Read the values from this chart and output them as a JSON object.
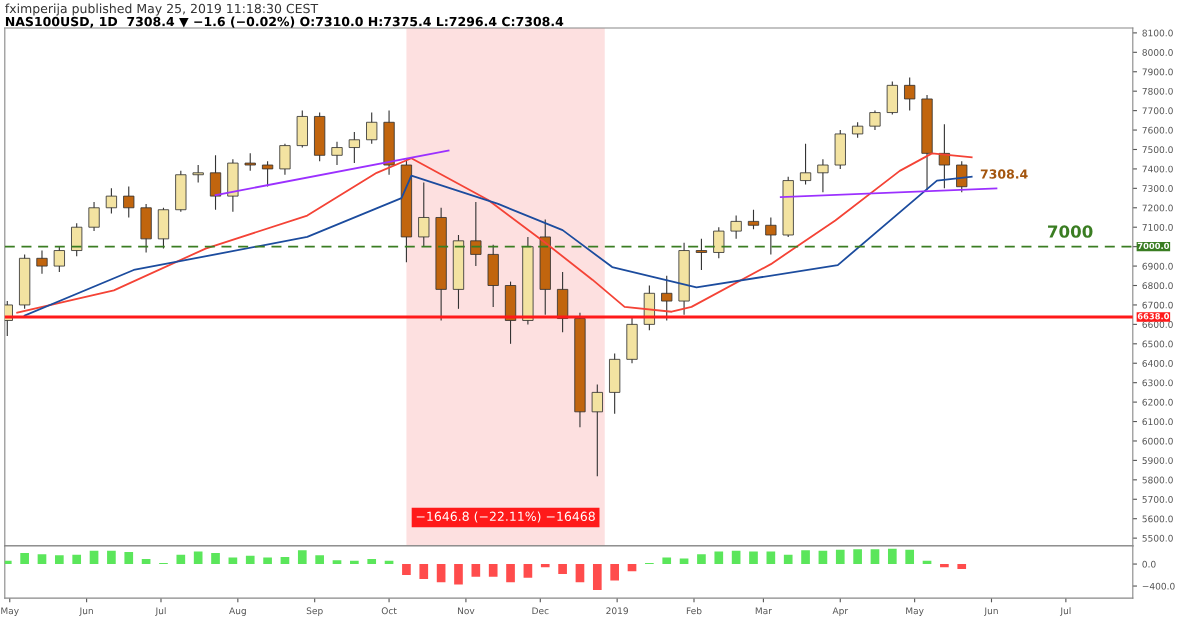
{
  "chart_data": [
    {
      "type": "candlestick",
      "subtitle": "fximperija published May 25, 2019 11:18:30 CEST",
      "title": "NAS100USD, 1D  7308.4 ▼ −1.6 (−0.02%) O:7310.0 H:7375.4 L:7296.4 C:7308.4",
      "x": [
        "2018-04-30",
        "2018-05-07",
        "2018-05-14",
        "2018-05-21",
        "2018-05-28",
        "2018-06-04",
        "2018-06-11",
        "2018-06-18",
        "2018-06-25",
        "2018-07-02",
        "2018-07-09",
        "2018-07-16",
        "2018-07-23",
        "2018-07-30",
        "2018-08-06",
        "2018-08-13",
        "2018-08-20",
        "2018-08-27",
        "2018-09-03",
        "2018-09-10",
        "2018-09-17",
        "2018-09-24",
        "2018-10-01",
        "2018-10-08",
        "2018-10-15",
        "2018-10-22",
        "2018-10-29",
        "2018-11-05",
        "2018-11-12",
        "2018-11-19",
        "2018-11-26",
        "2018-12-03",
        "2018-12-10",
        "2018-12-17",
        "2018-12-24",
        "2018-12-31",
        "2019-01-07",
        "2019-01-14",
        "2019-01-21",
        "2019-01-28",
        "2019-02-04",
        "2019-02-11",
        "2019-02-18",
        "2019-02-25",
        "2019-03-04",
        "2019-03-11",
        "2019-03-18",
        "2019-03-25",
        "2019-04-01",
        "2019-04-08",
        "2019-04-15",
        "2019-04-22",
        "2019-04-29",
        "2019-05-06",
        "2019-05-13",
        "2019-05-20"
      ],
      "ohlc": [
        [
          6620,
          6720,
          6540,
          6700
        ],
        [
          6700,
          6960,
          6680,
          6940
        ],
        [
          6940,
          6980,
          6860,
          6900
        ],
        [
          6900,
          7000,
          6870,
          6980
        ],
        [
          6980,
          7120,
          6950,
          7100
        ],
        [
          7100,
          7230,
          7080,
          7200
        ],
        [
          7200,
          7300,
          7170,
          7260
        ],
        [
          7260,
          7310,
          7150,
          7200
        ],
        [
          7200,
          7220,
          6970,
          7040
        ],
        [
          7040,
          7200,
          6990,
          7190
        ],
        [
          7190,
          7390,
          7180,
          7370
        ],
        [
          7370,
          7420,
          7330,
          7380
        ],
        [
          7380,
          7470,
          7190,
          7260
        ],
        [
          7260,
          7450,
          7180,
          7430
        ],
        [
          7430,
          7480,
          7390,
          7420
        ],
        [
          7420,
          7440,
          7310,
          7400
        ],
        [
          7400,
          7530,
          7370,
          7520
        ],
        [
          7520,
          7700,
          7510,
          7670
        ],
        [
          7670,
          7690,
          7440,
          7470
        ],
        [
          7470,
          7540,
          7420,
          7510
        ],
        [
          7510,
          7590,
          7430,
          7550
        ],
        [
          7550,
          7690,
          7530,
          7640
        ],
        [
          7640,
          7700,
          7370,
          7420
        ],
        [
          7420,
          7450,
          6920,
          7050
        ],
        [
          7050,
          7330,
          7000,
          7150
        ],
        [
          7150,
          7200,
          6620,
          6780
        ],
        [
          6780,
          7060,
          6680,
          7030
        ],
        [
          7030,
          7230,
          6900,
          6960
        ],
        [
          6960,
          7010,
          6690,
          6800
        ],
        [
          6800,
          6820,
          6500,
          6620
        ],
        [
          6620,
          7050,
          6600,
          7000
        ],
        [
          7050,
          7140,
          6650,
          6780
        ],
        [
          6780,
          6870,
          6560,
          6630
        ],
        [
          6630,
          6660,
          6070,
          6150
        ],
        [
          6150,
          6290,
          5818,
          6250
        ],
        [
          6250,
          6450,
          6140,
          6420
        ],
        [
          6420,
          6640,
          6400,
          6600
        ],
        [
          6600,
          6800,
          6570,
          6760
        ],
        [
          6760,
          6850,
          6620,
          6720
        ],
        [
          6720,
          7020,
          6650,
          6980
        ],
        [
          6980,
          7040,
          6880,
          6970
        ],
        [
          6970,
          7100,
          6940,
          7080
        ],
        [
          7080,
          7160,
          7040,
          7130
        ],
        [
          7130,
          7190,
          7090,
          7110
        ],
        [
          7110,
          7150,
          6960,
          7060
        ],
        [
          7060,
          7360,
          7050,
          7340
        ],
        [
          7340,
          7530,
          7320,
          7380
        ],
        [
          7380,
          7450,
          7280,
          7420
        ],
        [
          7420,
          7600,
          7400,
          7580
        ],
        [
          7580,
          7640,
          7560,
          7620
        ],
        [
          7620,
          7700,
          7600,
          7690
        ],
        [
          7690,
          7850,
          7680,
          7830
        ],
        [
          7830,
          7870,
          7700,
          7760
        ],
        [
          7760,
          7780,
          7290,
          7480
        ],
        [
          7480,
          7630,
          7300,
          7420
        ],
        [
          7420,
          7440,
          7280,
          7308.4
        ]
      ],
      "colors": [
        "#f3e3a1",
        "#f3e3a1",
        "#c1650e",
        "#f3e3a1",
        "#f3e3a1",
        "#f3e3a1",
        "#f3e3a1",
        "#c1650e",
        "#c1650e",
        "#f3e3a1",
        "#f3e3a1",
        "#f3e3a1",
        "#c1650e",
        "#f3e3a1",
        "#c1650e",
        "#c1650e",
        "#f3e3a1",
        "#f3e3a1",
        "#c1650e",
        "#f3e3a1",
        "#f3e3a1",
        "#f3e3a1",
        "#c1650e",
        "#c1650e",
        "#f3e3a1",
        "#c1650e",
        "#f3e3a1",
        "#c1650e",
        "#c1650e",
        "#c1650e",
        "#f3e3a1",
        "#c1650e",
        "#c1650e",
        "#c1650e",
        "#f3e3a1",
        "#f3e3a1",
        "#f3e3a1",
        "#f3e3a1",
        "#c1650e",
        "#f3e3a1",
        "#c1650e",
        "#f3e3a1",
        "#f3e3a1",
        "#c1650e",
        "#c1650e",
        "#f3e3a1",
        "#f3e3a1",
        "#f3e3a1",
        "#f3e3a1",
        "#f3e3a1",
        "#f3e3a1",
        "#f3e3a1",
        "#c1650e",
        "#c1650e",
        "#c1650e",
        "#c1650e"
      ],
      "series": [
        {
          "type": "line",
          "color": "#f44336",
          "x": [
            "2018-05-04",
            "2018-06-12",
            "2018-07-19",
            "2018-08-29",
            "2018-09-26",
            "2018-10-10",
            "2018-11-10",
            "2018-12-03",
            "2018-12-22",
            "2019-01-04",
            "2019-01-23",
            "2019-01-31",
            "2019-03-04",
            "2019-03-30",
            "2019-04-25",
            "2019-05-08",
            "2019-05-24"
          ],
          "values": [
            6660,
            6775,
            6990,
            7160,
            7380,
            7455,
            7240,
            7020,
            6830,
            6690,
            6665,
            6690,
            6910,
            7135,
            7390,
            7480,
            7460
          ]
        },
        {
          "type": "line",
          "color": "#1c4c9e",
          "x": [
            "2018-05-07",
            "2018-06-20",
            "2018-08-29",
            "2018-10-06",
            "2018-10-10",
            "2018-11-14",
            "2018-12-10",
            "2018-12-30",
            "2019-02-02",
            "2019-03-31",
            "2019-05-10",
            "2019-05-24"
          ],
          "values": [
            6645,
            6880,
            7050,
            7250,
            7365,
            7220,
            7085,
            6895,
            6790,
            6905,
            7340,
            7360
          ]
        },
        {
          "type": "line",
          "color": "#9b30ff",
          "x": [
            "2018-07-23",
            "2018-10-25"
          ],
          "values": [
            7265,
            7495
          ]
        },
        {
          "type": "line",
          "color": "#9b30ff",
          "x": [
            "2019-03-08",
            "2019-06-03"
          ],
          "values": [
            7255,
            7300
          ]
        }
      ],
      "ref_lines": [
        {
          "axis": "y",
          "value": 7000,
          "label": "7000.0",
          "color": "#3a7d22",
          "line_style": "dashed"
        },
        {
          "axis": "y",
          "value": 6638,
          "label": "6638.0",
          "color": "#ff1a1a",
          "line_style": "solid"
        }
      ],
      "bands": [
        {
          "axis": "x",
          "from": "2018-10-08",
          "to": "2018-12-27",
          "label": "−1646.8 (−22.11%) −16468",
          "color": "#fde0e0"
        }
      ],
      "annotations": [
        {
          "text": "7000",
          "x": "2019-06-20",
          "y": 7000
        },
        {
          "text": "7308.4",
          "x": "2019-05-24",
          "y": 7308.4
        }
      ],
      "xlim": [
        "2018-04-29",
        "2019-07-28"
      ],
      "ylim": [
        5460,
        8125
      ],
      "yticks": [
        {
          "value": 5500,
          "label": "5500.0"
        },
        {
          "value": 5600,
          "label": "5600.0"
        },
        {
          "value": 5700,
          "label": "5700.0"
        },
        {
          "value": 5800,
          "label": "5800.0"
        },
        {
          "value": 5900,
          "label": "5900.0"
        },
        {
          "value": 6000,
          "label": "6000.0"
        },
        {
          "value": 6100,
          "label": "6100.0"
        },
        {
          "value": 6200,
          "label": "6200.0"
        },
        {
          "value": 6300,
          "label": "6300.0"
        },
        {
          "value": 6400,
          "label": "6400.0"
        },
        {
          "value": 6500,
          "label": "6500.0"
        },
        {
          "value": 6600,
          "label": "6600.0"
        },
        {
          "value": 6700,
          "label": "6700.0"
        },
        {
          "value": 6800,
          "label": "6800.0"
        },
        {
          "value": 6900,
          "label": "6900.0"
        },
        {
          "value": 7000,
          "label": null
        },
        {
          "value": 7100,
          "label": "7100.0"
        },
        {
          "value": 7200,
          "label": "7200.0"
        },
        {
          "value": 7300,
          "label": "7300.0"
        },
        {
          "value": 7400,
          "label": "7400.0"
        },
        {
          "value": 7500,
          "label": "7500.0"
        },
        {
          "value": 7600,
          "label": "7600.0"
        },
        {
          "value": 7700,
          "label": "7700.0"
        },
        {
          "value": 7800,
          "label": "7800.0"
        },
        {
          "value": 7900,
          "label": "7900.0"
        },
        {
          "value": 8000,
          "label": "8000.0"
        },
        {
          "value": 8100,
          "label": "8100.0"
        }
      ],
      "tick_labels": "y"
    },
    {
      "type": "bar",
      "x": [
        "2018-04-30",
        "2018-05-07",
        "2018-05-14",
        "2018-05-21",
        "2018-05-28",
        "2018-06-04",
        "2018-06-11",
        "2018-06-18",
        "2018-06-25",
        "2018-07-02",
        "2018-07-09",
        "2018-07-16",
        "2018-07-23",
        "2018-07-30",
        "2018-08-06",
        "2018-08-13",
        "2018-08-20",
        "2018-08-27",
        "2018-09-03",
        "2018-09-10",
        "2018-09-17",
        "2018-09-24",
        "2018-10-01",
        "2018-10-08",
        "2018-10-15",
        "2018-10-22",
        "2018-10-29",
        "2018-11-05",
        "2018-11-12",
        "2018-11-19",
        "2018-11-26",
        "2018-12-03",
        "2018-12-10",
        "2018-12-17",
        "2018-12-24",
        "2018-12-31",
        "2019-01-07",
        "2019-01-14",
        "2019-01-21",
        "2019-01-28",
        "2019-02-04",
        "2019-02-11",
        "2019-02-18",
        "2019-02-25",
        "2019-03-04",
        "2019-03-11",
        "2019-03-18",
        "2019-03-25",
        "2019-04-01",
        "2019-04-08",
        "2019-04-15",
        "2019-04-22",
        "2019-04-29",
        "2019-05-06",
        "2019-05-13",
        "2019-05-20"
      ],
      "values": [
        60,
        200,
        180,
        160,
        170,
        240,
        240,
        220,
        90,
        20,
        170,
        230,
        200,
        120,
        150,
        120,
        130,
        250,
        160,
        70,
        60,
        90,
        60,
        -200,
        -270,
        -330,
        -370,
        -230,
        -230,
        -330,
        -250,
        -60,
        -180,
        -330,
        -470,
        -300,
        -130,
        20,
        120,
        100,
        180,
        230,
        240,
        230,
        230,
        170,
        250,
        240,
        260,
        270,
        270,
        280,
        260,
        60,
        -60,
        -90
      ],
      "colors": [
        "#5be65b",
        "#5be65b",
        "#5be65b",
        "#5be65b",
        "#5be65b",
        "#5be65b",
        "#5be65b",
        "#5be65b",
        "#5be65b",
        "#5be65b",
        "#5be65b",
        "#5be65b",
        "#5be65b",
        "#5be65b",
        "#5be65b",
        "#5be65b",
        "#5be65b",
        "#5be65b",
        "#5be65b",
        "#5be65b",
        "#5be65b",
        "#5be65b",
        "#5be65b",
        "#ff4c4c",
        "#ff4c4c",
        "#ff4c4c",
        "#ff4c4c",
        "#ff4c4c",
        "#ff4c4c",
        "#ff4c4c",
        "#ff4c4c",
        "#ff4c4c",
        "#ff4c4c",
        "#ff4c4c",
        "#ff4c4c",
        "#ff4c4c",
        "#ff4c4c",
        "#5be65b",
        "#5be65b",
        "#5be65b",
        "#5be65b",
        "#5be65b",
        "#5be65b",
        "#5be65b",
        "#5be65b",
        "#5be65b",
        "#5be65b",
        "#5be65b",
        "#5be65b",
        "#5be65b",
        "#5be65b",
        "#5be65b",
        "#5be65b",
        "#5be65b",
        "#ff4c4c",
        "#ff4c4c"
      ],
      "xlim": [
        "2018-04-29",
        "2019-07-28"
      ],
      "xticks": [
        {
          "value": "2018-05-01",
          "label": "May"
        },
        {
          "value": "2018-06-01",
          "label": "Jun"
        },
        {
          "value": "2018-07-01",
          "label": "Jul"
        },
        {
          "value": "2018-08-01",
          "label": "Aug"
        },
        {
          "value": "2018-09-01",
          "label": "Sep"
        },
        {
          "value": "2018-10-01",
          "label": "Oct"
        },
        {
          "value": "2018-11-01",
          "label": "Nov"
        },
        {
          "value": "2018-12-01",
          "label": "Dec"
        },
        {
          "value": "2019-01-01",
          "label": "2019"
        },
        {
          "value": "2019-02-01",
          "label": "Feb"
        },
        {
          "value": "2019-03-01",
          "label": "Mar"
        },
        {
          "value": "2019-04-01",
          "label": "Apr"
        },
        {
          "value": "2019-05-01",
          "label": "May"
        },
        {
          "value": "2019-06-01",
          "label": "Jun"
        },
        {
          "value": "2019-07-01",
          "label": "Jul"
        }
      ],
      "ylim": [
        -620,
        330
      ],
      "yticks": [
        {
          "value": 0,
          "label": "0.0"
        },
        {
          "value": -400,
          "label": "−400.0"
        }
      ]
    }
  ]
}
